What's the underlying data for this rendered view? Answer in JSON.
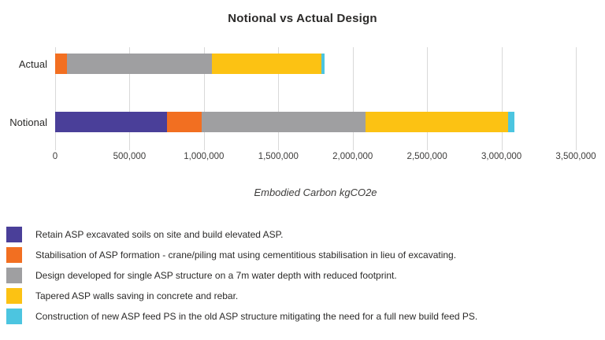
{
  "chart_data": {
    "type": "bar",
    "orientation": "horizontal",
    "stacked": true,
    "title": "Notional vs Actual Design",
    "xlabel": "Embodied Carbon kgCO2e",
    "xlim": [
      0,
      3500000
    ],
    "x_ticks": [
      {
        "value": 0,
        "label": "0"
      },
      {
        "value": 500000,
        "label": "500,000"
      },
      {
        "value": 1000000,
        "label": "1,000,000"
      },
      {
        "value": 1500000,
        "label": "1,500,000"
      },
      {
        "value": 2000000,
        "label": "2,000,000"
      },
      {
        "value": 2500000,
        "label": "2,500,000"
      },
      {
        "value": 3000000,
        "label": "3,000,000"
      },
      {
        "value": 3500000,
        "label": "3,500,000"
      }
    ],
    "categories": [
      "Actual",
      "Notional"
    ],
    "series": [
      {
        "name": "Retain ASP excavated soils on site and build elevated ASP.",
        "color": "#4a3f99",
        "values": [
          0,
          750000
        ]
      },
      {
        "name": "Stabilisation of ASP formation - crane/piling mat using cementitious stabilisation in lieu of excavating.",
        "color": "#f26f21",
        "values": [
          80000,
          235000
        ]
      },
      {
        "name": "Design developed for single ASP structure on a 7m water depth with reduced footprint.",
        "color": "#9f9fa1",
        "values": [
          975000,
          1100000
        ]
      },
      {
        "name": "Tapered ASP walls saving in concrete and rebar.",
        "color": "#fcc213",
        "values": [
          735000,
          960000
        ]
      },
      {
        "name": "Construction of new ASP feed PS in the old ASP structure mitigating the need for a full new build feed PS.",
        "color": "#4cc5e0",
        "values": [
          20000,
          40000
        ]
      }
    ],
    "grid": true,
    "gridline_color": "#d9d9d9",
    "text_color": "#2b2a29",
    "legend_position": "bottom-left"
  }
}
